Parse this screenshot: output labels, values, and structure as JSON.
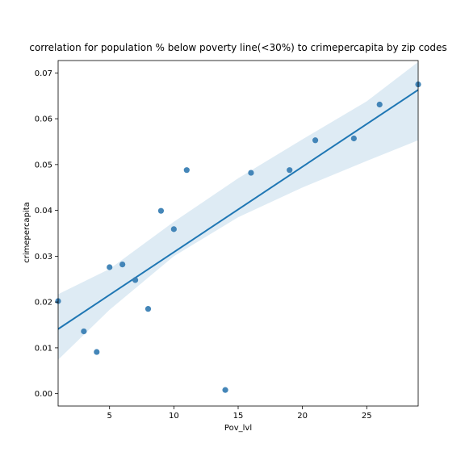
{
  "chart_data": {
    "type": "scatter",
    "title": "correlation for population % below poverty line(<30%) to crimepercapita by zip codes",
    "xlabel": "Pov_lvl",
    "ylabel": "crimepercapita",
    "xlim": [
      1,
      29
    ],
    "ylim": [
      -0.0027,
      0.0727
    ],
    "xticks": [
      5,
      10,
      15,
      20,
      25
    ],
    "yticks": [
      0.0,
      0.01,
      0.02,
      0.03,
      0.04,
      0.05,
      0.06,
      0.07
    ],
    "xtick_labels": [
      "5",
      "10",
      "15",
      "20",
      "25"
    ],
    "ytick_labels": [
      "0.00",
      "0.01",
      "0.02",
      "0.03",
      "0.04",
      "0.05",
      "0.06",
      "0.07"
    ],
    "grid": false,
    "points": [
      {
        "x": 1,
        "y": 0.0202
      },
      {
        "x": 3,
        "y": 0.0136
      },
      {
        "x": 4,
        "y": 0.0091
      },
      {
        "x": 5,
        "y": 0.0276
      },
      {
        "x": 6,
        "y": 0.0282
      },
      {
        "x": 7,
        "y": 0.0248
      },
      {
        "x": 8,
        "y": 0.0185
      },
      {
        "x": 9,
        "y": 0.0399
      },
      {
        "x": 10,
        "y": 0.0359
      },
      {
        "x": 11,
        "y": 0.0488
      },
      {
        "x": 14,
        "y": 0.0008
      },
      {
        "x": 16,
        "y": 0.0482
      },
      {
        "x": 19,
        "y": 0.0488
      },
      {
        "x": 21,
        "y": 0.0553
      },
      {
        "x": 24,
        "y": 0.0557
      },
      {
        "x": 26,
        "y": 0.0631
      },
      {
        "x": 29,
        "y": 0.0675
      }
    ],
    "regression_line": {
      "x": [
        1,
        29
      ],
      "y": [
        0.0141,
        0.0663
      ]
    },
    "confidence_band": {
      "x": [
        1,
        5,
        10,
        15,
        20,
        25,
        29
      ],
      "lower": [
        0.0074,
        0.0183,
        0.03,
        0.0385,
        0.045,
        0.0508,
        0.0553
      ],
      "upper": [
        0.0217,
        0.0272,
        0.0375,
        0.047,
        0.0555,
        0.0638,
        0.0724
      ]
    },
    "colors": {
      "points": "#3a7fb4",
      "line": "#1f77b4",
      "band": "#1f77b4"
    }
  }
}
